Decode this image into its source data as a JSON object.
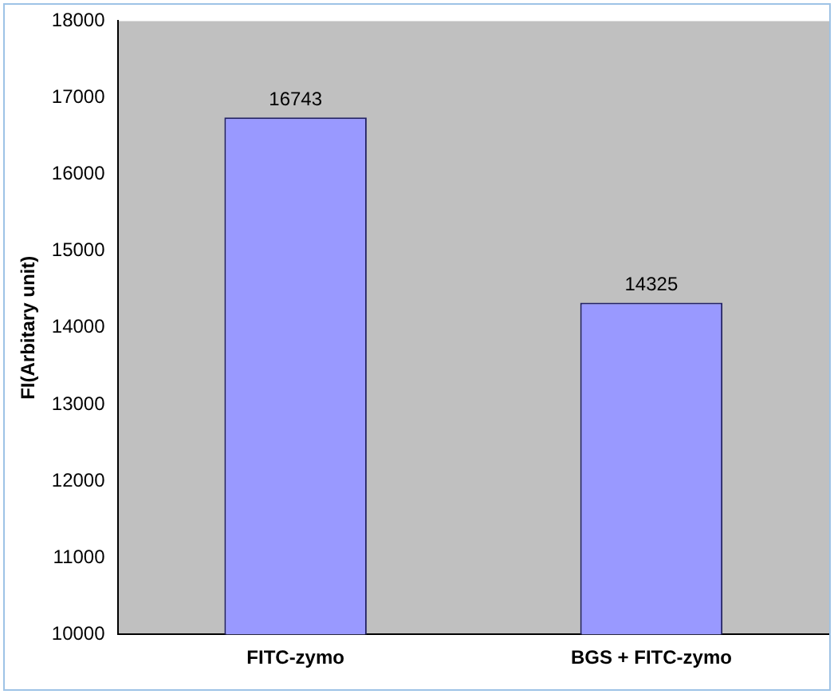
{
  "chart_data": {
    "type": "bar",
    "ylabel": "FI(Arbitary unit)",
    "categories": [
      "FITC-zymo",
      "BGS + FITC-zymo"
    ],
    "values": [
      16743,
      14325
    ],
    "color": "#9999ff",
    "ylim": [
      10000,
      18000
    ],
    "yticks": [
      10000,
      11000,
      12000,
      13000,
      14000,
      15000,
      16000,
      17000,
      18000
    ],
    "grid": false,
    "legend": false,
    "data_labels": true
  }
}
